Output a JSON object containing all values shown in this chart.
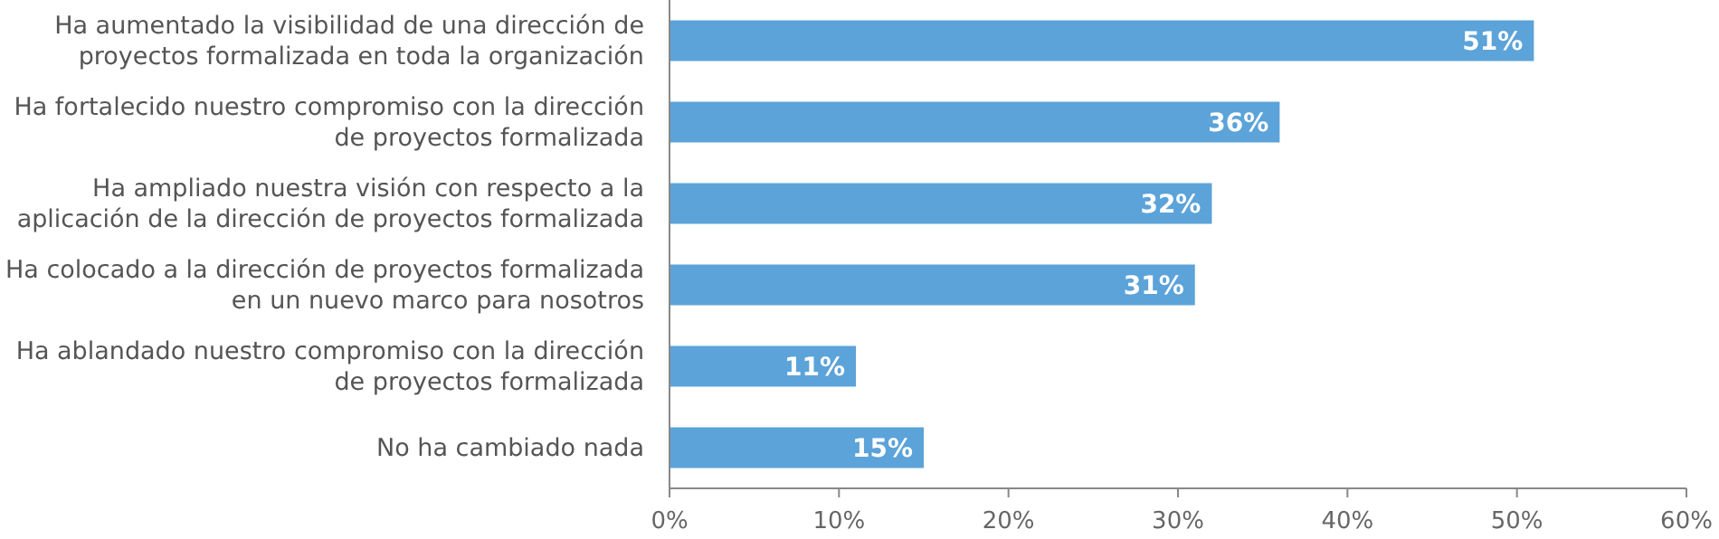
{
  "chart_data": {
    "type": "bar",
    "orientation": "horizontal",
    "categories": [
      "Ha aumentado la visibilidad de una dirección de\nproyectos formalizada en toda la organización",
      "Ha fortalecido nuestro compromiso con la dirección\nde proyectos formalizada",
      "Ha ampliado nuestra visión con respecto a la\naplicación de la dirección de proyectos formalizada",
      "Ha colocado a la dirección de proyectos formalizada\nen un nuevo marco para nosotros",
      "Ha ablandado nuestro compromiso con la dirección\nde proyectos formalizada",
      "No ha cambiado nada"
    ],
    "values": [
      51,
      36,
      32,
      31,
      11,
      15
    ],
    "color": "#5ba3d9",
    "value_labels": [
      "51%",
      "36%",
      "32%",
      "31%",
      "11%",
      "15%"
    ],
    "xlim": [
      0,
      60
    ],
    "xticks": [
      {
        "value": 0,
        "label": "0%"
      },
      {
        "value": 10,
        "label": "10%"
      },
      {
        "value": 20,
        "label": "20%"
      },
      {
        "value": 30,
        "label": "30%"
      },
      {
        "value": 40,
        "label": "40%"
      },
      {
        "value": 50,
        "label": "50%"
      },
      {
        "value": 60,
        "label": "60%"
      }
    ],
    "grid": false
  }
}
